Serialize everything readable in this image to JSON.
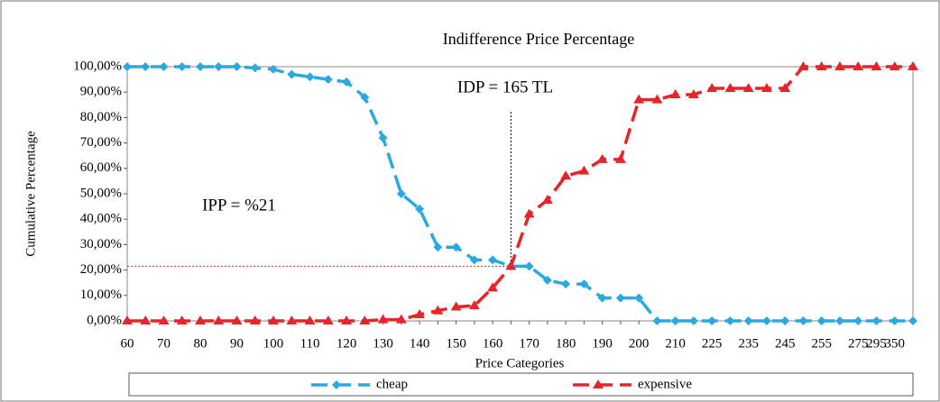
{
  "chart_data": {
    "type": "line",
    "title": "Indifference  Price Percentage",
    "xlabel": "Price Categories",
    "ylabel": "Cumulative  Percentage",
    "annotations": [
      "IDP = 165 TL",
      "IPP = %21"
    ],
    "categories": [
      "60",
      null,
      "70",
      null,
      "80",
      null,
      "90",
      null,
      "100",
      null,
      "110",
      null,
      "120",
      null,
      "130",
      null,
      "140",
      null,
      "150",
      null,
      "160",
      null,
      "170",
      null,
      "180",
      null,
      "190",
      null,
      "200",
      null,
      "210",
      null,
      "225",
      null,
      "235",
      null,
      "245",
      null,
      "255",
      null,
      "275",
      "295",
      "350",
      null
    ],
    "series": [
      {
        "name": "cheap",
        "color": "#29a9df",
        "marker": "diamond",
        "values": [
          100,
          100,
          100,
          100,
          100,
          100,
          100,
          99.5,
          99,
          97,
          96,
          95,
          94,
          88,
          72,
          50,
          44,
          29,
          29,
          24,
          24,
          21.5,
          21.5,
          16,
          14.5,
          14.5,
          9,
          9,
          9,
          0,
          0,
          0,
          0,
          0,
          0,
          0,
          0,
          0,
          0,
          0,
          0,
          0,
          0,
          0
        ]
      },
      {
        "name": "expensive",
        "color": "#e8242a",
        "marker": "triangle",
        "values": [
          0,
          0,
          0,
          0,
          0,
          0,
          0,
          0,
          0,
          0,
          0,
          0,
          0,
          0,
          0.5,
          0.5,
          2.5,
          4,
          5.5,
          6,
          13,
          21.5,
          42,
          47.5,
          57,
          59,
          63.5,
          63.5,
          87,
          87,
          89,
          89,
          91.5,
          91.5,
          91.5,
          91.5,
          91.5,
          100,
          100,
          100,
          100,
          100,
          100,
          100
        ]
      }
    ],
    "ylim": [
      0,
      100
    ],
    "yticks": [
      {
        "value": 0,
        "label": "0,00%"
      },
      {
        "value": 10,
        "label": "10,00%"
      },
      {
        "value": 20,
        "label": "20,00%"
      },
      {
        "value": 30,
        "label": "30,00%"
      },
      {
        "value": 40,
        "label": "40,00%"
      },
      {
        "value": 50,
        "label": "50,00%"
      },
      {
        "value": 60,
        "label": "60,00%"
      },
      {
        "value": 70,
        "label": "70,00%"
      },
      {
        "value": 80,
        "label": "80,00%"
      },
      {
        "value": 90,
        "label": "90,00%"
      },
      {
        "value": 100,
        "label": "100,00%"
      }
    ],
    "legend": "bottom"
  }
}
